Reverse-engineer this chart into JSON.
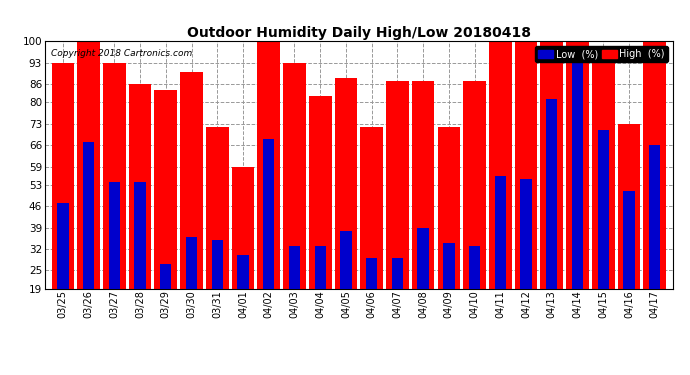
{
  "title": "Outdoor Humidity Daily High/Low 20180418",
  "copyright": "Copyright 2018 Cartronics.com",
  "categories": [
    "03/25",
    "03/26",
    "03/27",
    "03/28",
    "03/29",
    "03/30",
    "03/31",
    "04/01",
    "04/02",
    "04/03",
    "04/04",
    "04/05",
    "04/06",
    "04/07",
    "04/08",
    "04/09",
    "04/10",
    "04/11",
    "04/12",
    "04/13",
    "04/14",
    "04/15",
    "04/16",
    "04/17"
  ],
  "high_values": [
    93,
    100,
    93,
    86,
    84,
    90,
    72,
    59,
    100,
    93,
    82,
    88,
    72,
    87,
    87,
    72,
    87,
    100,
    100,
    100,
    100,
    93,
    73,
    100
  ],
  "low_values": [
    47,
    67,
    54,
    54,
    27,
    36,
    35,
    30,
    68,
    33,
    33,
    38,
    29,
    29,
    39,
    34,
    33,
    56,
    55,
    81,
    94,
    71,
    51,
    66
  ],
  "high_color": "#ff0000",
  "low_color": "#0000cc",
  "bg_color": "#ffffff",
  "plot_bg_color": "#ffffff",
  "grid_color": "#999999",
  "yticks": [
    19,
    25,
    32,
    39,
    46,
    53,
    59,
    66,
    73,
    80,
    86,
    93,
    100
  ],
  "ymin": 19,
  "ymax": 100,
  "bar_width": 0.4,
  "legend_low_label": "Low  (%)",
  "legend_high_label": "High  (%)"
}
